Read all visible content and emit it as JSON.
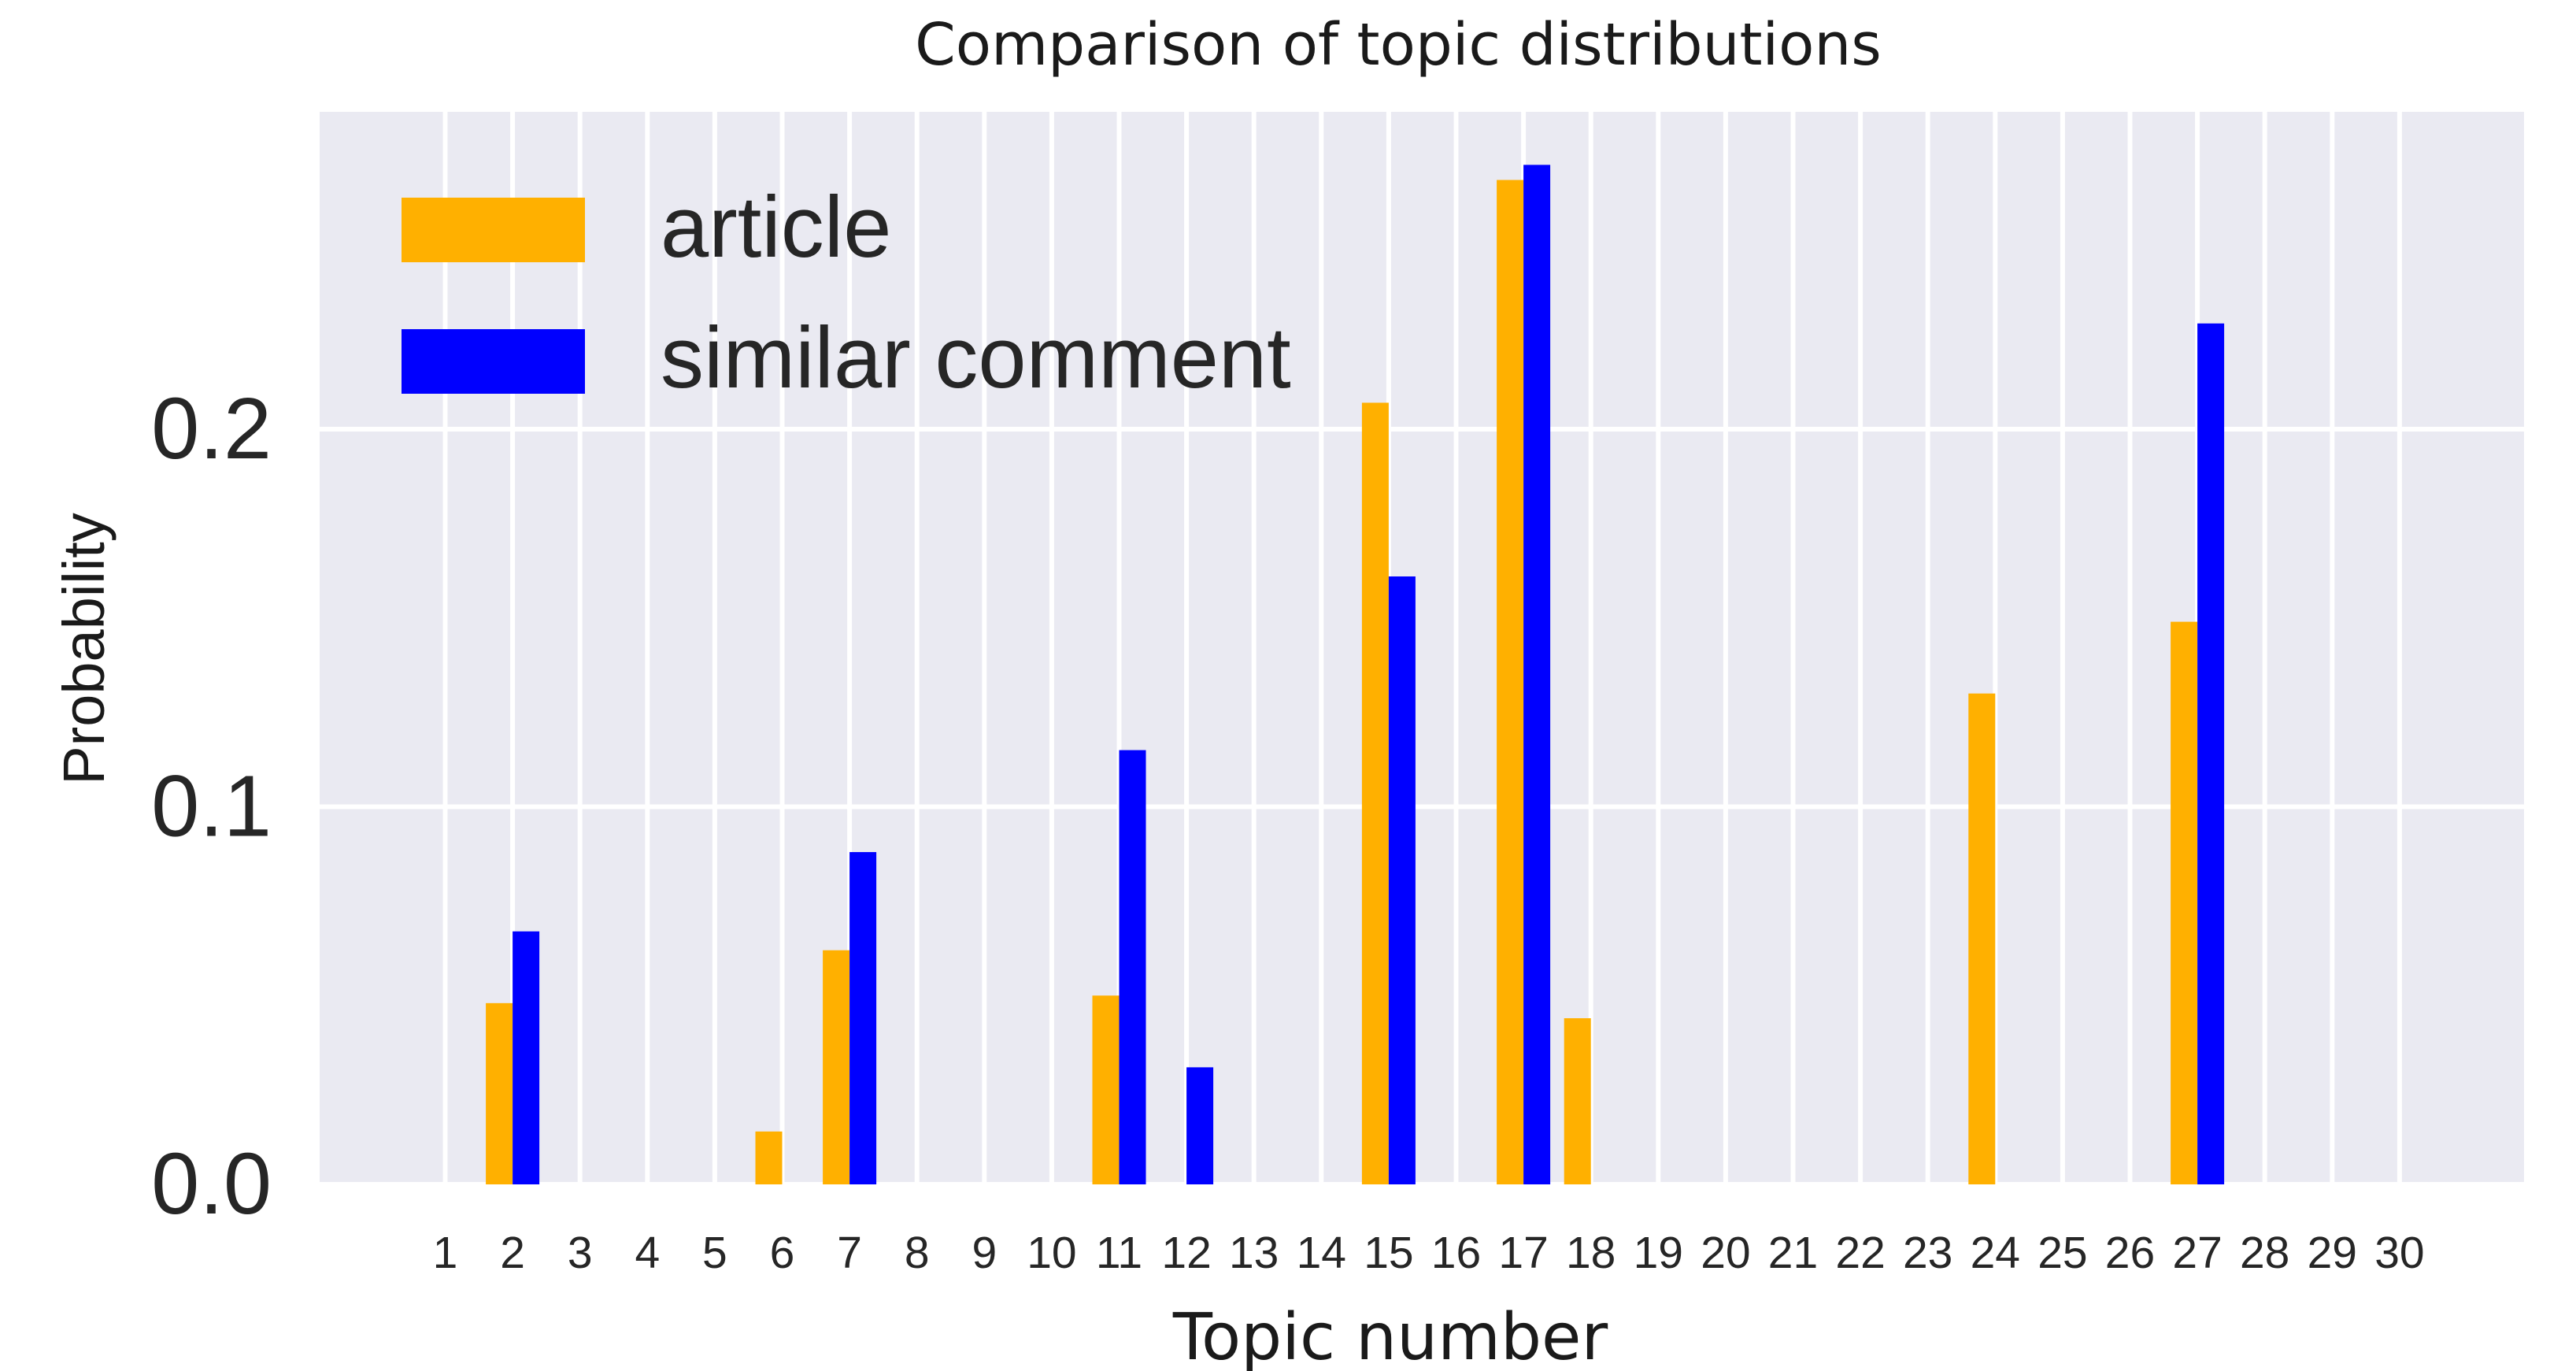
{
  "chart_data": {
    "type": "bar",
    "title": "Comparison of topic distributions",
    "xlabel": "Topic number",
    "ylabel": "Probability",
    "categories": [
      "1",
      "2",
      "3",
      "4",
      "5",
      "6",
      "7",
      "8",
      "9",
      "10",
      "11",
      "12",
      "13",
      "14",
      "15",
      "16",
      "17",
      "18",
      "19",
      "20",
      "21",
      "22",
      "23",
      "24",
      "25",
      "26",
      "27",
      "28",
      "29",
      "30"
    ],
    "ylim": [
      0,
      0.28
    ],
    "yticks": [
      "0.0",
      "0.1",
      "0.2"
    ],
    "grid": true,
    "legend_position": "top-left",
    "series": [
      {
        "name": "article",
        "color": "#ffb000",
        "values": [
          0,
          0.048,
          0,
          0,
          0,
          0.014,
          0.062,
          0,
          0,
          0,
          0.05,
          0,
          0,
          0,
          0.207,
          0,
          0.266,
          0.044,
          0,
          0,
          0,
          0,
          0,
          0.13,
          0,
          0,
          0.149,
          0,
          0,
          0
        ]
      },
      {
        "name": "similar comment",
        "color": "#0000ff",
        "values": [
          0,
          0.067,
          0,
          0,
          0,
          0,
          0.088,
          0,
          0,
          0,
          0.115,
          0.031,
          0,
          0,
          0.161,
          0,
          0.27,
          0,
          0,
          0,
          0,
          0,
          0,
          0,
          0,
          0,
          0.228,
          0,
          0,
          0
        ]
      }
    ],
    "background_color": "#eaeaf2",
    "grid_color": "#ffffff"
  }
}
